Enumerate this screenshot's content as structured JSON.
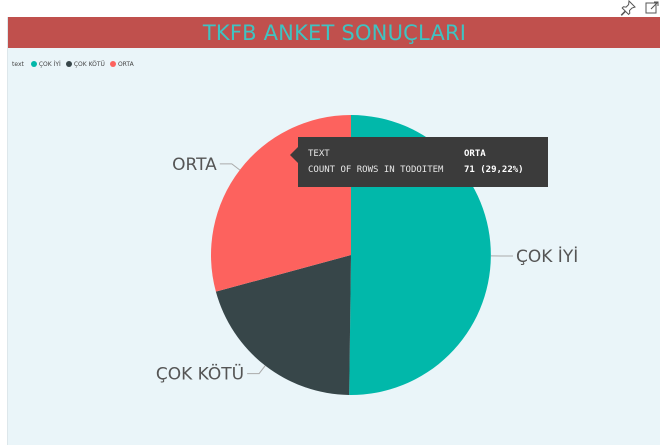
{
  "toolbar": {
    "pin_icon": "pin-icon",
    "expand_icon": "expand-icon"
  },
  "colors": {
    "title_bg": "#c0504d",
    "title_text": "#3fc3c2",
    "visual_bg": "#eaf5f9",
    "tooltip_bg": "#3b3b3b"
  },
  "legend": {
    "title": "text",
    "items": [
      {
        "label": "ÇOK İYİ",
        "color": "#01b8aa"
      },
      {
        "label": "ÇOK KÖTÜ",
        "color": "#374649"
      },
      {
        "label": "ORTA",
        "color": "#fd625e"
      }
    ]
  },
  "tooltip": {
    "rows": [
      {
        "key": "TEXT",
        "value": "ORTA"
      },
      {
        "key": "COUNT OF ROWS IN TODOITEM",
        "value": "71 (29,22%)"
      }
    ]
  },
  "chart_data": {
    "type": "pie",
    "title": "TKFB ANKET SONUÇLARI",
    "slices": [
      {
        "label": "ÇOK İYİ",
        "value": 122,
        "color": "#01b8aa"
      },
      {
        "label": "ÇOK KÖTÜ",
        "value": 50,
        "color": "#374649"
      },
      {
        "label": "ORTA",
        "value": 71,
        "color": "#fd625e"
      }
    ],
    "legend_position": "top-left"
  }
}
